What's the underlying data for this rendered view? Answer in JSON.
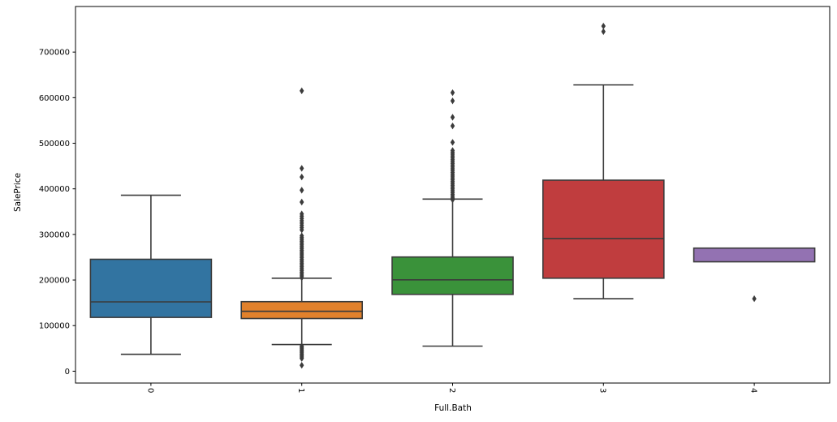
{
  "chart_data": {
    "type": "boxplot",
    "title": "",
    "xlabel": "Full.Bath",
    "ylabel": "SalePrice",
    "categories": [
      "0",
      "1",
      "2",
      "3",
      "4"
    ],
    "ylim": [
      -26000,
      800000
    ],
    "yticks": [
      0,
      100000,
      200000,
      300000,
      400000,
      500000,
      600000,
      700000
    ],
    "ytick_labels": [
      "0",
      "100000",
      "200000",
      "300000",
      "400000",
      "500000",
      "600000",
      "700000"
    ],
    "grid": false,
    "legend": null,
    "edge_color": "#3b3b3b",
    "spine_color": "#000000",
    "text_color": "#000000",
    "boxes": [
      {
        "category": "0",
        "color": "#3274A1",
        "whisker_low": 37000,
        "q1": 118000,
        "median": 152000,
        "q3": 245500,
        "whisker_high": 386000,
        "outliers": []
      },
      {
        "category": "1",
        "color": "#E1812C",
        "whisker_low": 58500,
        "q1": 115500,
        "median": 131500,
        "q3": 152500,
        "whisker_high": 204000,
        "outliers": [
          13000,
          28000,
          31000,
          34000,
          37000,
          40000,
          43000,
          46000,
          49000,
          52000,
          55000,
          205000,
          209000,
          213000,
          217000,
          221000,
          225000,
          229000,
          233000,
          237000,
          241000,
          245000,
          249000,
          253000,
          257000,
          261000,
          265000,
          269000,
          273000,
          277000,
          281000,
          285000,
          289000,
          293000,
          297000,
          310000,
          315000,
          320000,
          325000,
          330000,
          335000,
          340000,
          345000,
          371000,
          397000,
          426000,
          445000,
          615000
        ]
      },
      {
        "category": "2",
        "color": "#3A923A",
        "whisker_low": 55000,
        "q1": 168500,
        "median": 200500,
        "q3": 250500,
        "whisker_high": 377500,
        "outliers": [
          376000,
          380000,
          384000,
          388000,
          392000,
          396000,
          400000,
          404000,
          408000,
          412000,
          416000,
          420000,
          424000,
          428000,
          432000,
          436000,
          440000,
          444000,
          448000,
          452000,
          456000,
          460000,
          464000,
          468000,
          472000,
          476000,
          480000,
          484000,
          502000,
          538000,
          557000,
          593000,
          611000
        ]
      },
      {
        "category": "3",
        "color": "#C03D3E",
        "whisker_low": 159000,
        "q1": 204000,
        "median": 291000,
        "q3": 419000,
        "whisker_high": 628000,
        "outliers": [
          745000,
          757000
        ]
      },
      {
        "category": "4",
        "color": "#9372B2",
        "whisker_low": 240000,
        "q1": 240000,
        "median": null,
        "q3": 270000,
        "whisker_high": 270000,
        "outliers": [
          159000
        ]
      }
    ]
  }
}
